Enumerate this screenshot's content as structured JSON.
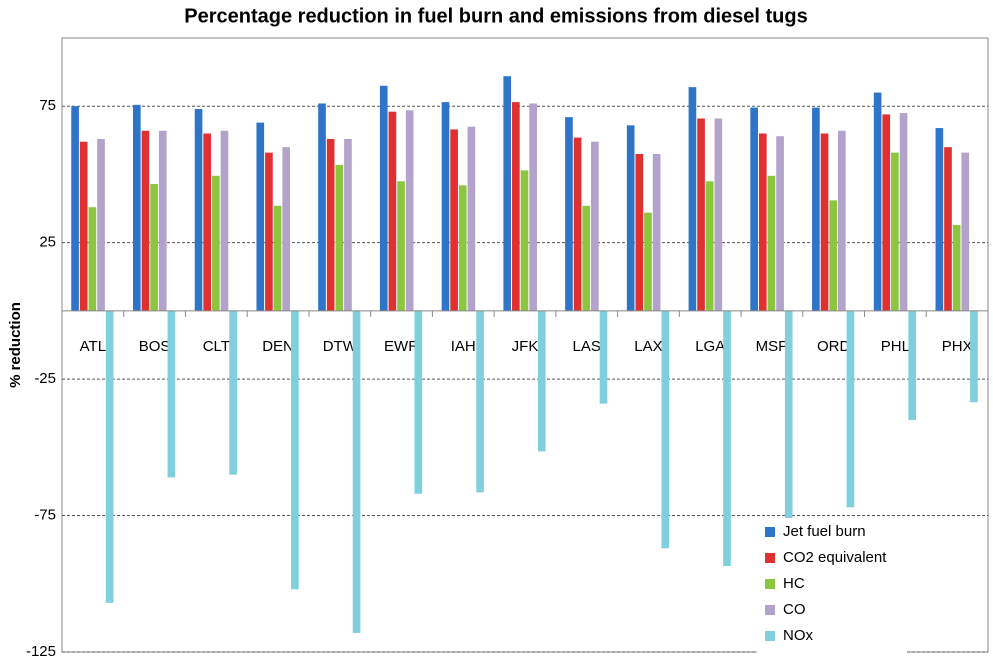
{
  "chart_data": {
    "type": "bar",
    "title": "Percentage reduction in fuel burn and emissions from diesel tugs",
    "y_label": "% reduction",
    "categories": [
      "ATL",
      "BOS",
      "CLT",
      "DEN",
      "DTW",
      "EWR",
      "IAH",
      "JFK",
      "LAS",
      "LAX",
      "LGA",
      "MSP",
      "ORD",
      "PHL",
      "PHX"
    ],
    "series": [
      {
        "name": "Jet fuel burn",
        "color": "#2e75c9",
        "values": [
          75,
          75.5,
          74,
          69,
          76,
          82.5,
          76.5,
          86,
          71,
          68,
          82,
          74.5,
          74.5,
          80,
          67
        ]
      },
      {
        "name": "CO2 equivalent",
        "color": "#e0302f",
        "values": [
          62,
          66,
          65,
          58,
          63,
          73,
          66.5,
          76.5,
          63.5,
          57.5,
          70.5,
          65,
          65,
          72,
          60
        ]
      },
      {
        "name": "HC",
        "color": "#8cc63f",
        "values": [
          38,
          46.5,
          49.5,
          38.5,
          53.5,
          47.5,
          46,
          51.5,
          38.5,
          36,
          47.5,
          49.5,
          40.5,
          58,
          31.5
        ]
      },
      {
        "name": "CO",
        "color": "#b3a2c9",
        "values": [
          63,
          66,
          66,
          60,
          63,
          73.5,
          67.5,
          76,
          62,
          57.5,
          70.5,
          64,
          66,
          72.5,
          58
        ]
      },
      {
        "name": "NOx",
        "color": "#7fd0dc",
        "values": [
          -107,
          -61,
          -60,
          -102,
          -118,
          -67,
          -66.5,
          -51.5,
          -34,
          -87,
          -93.5,
          -78,
          -72,
          -40,
          -33.5
        ]
      }
    ],
    "ylim": [
      -125,
      100
    ],
    "yticks": [
      -125,
      -75,
      -25,
      25,
      75
    ],
    "grid": true,
    "legend": "lower-right"
  }
}
